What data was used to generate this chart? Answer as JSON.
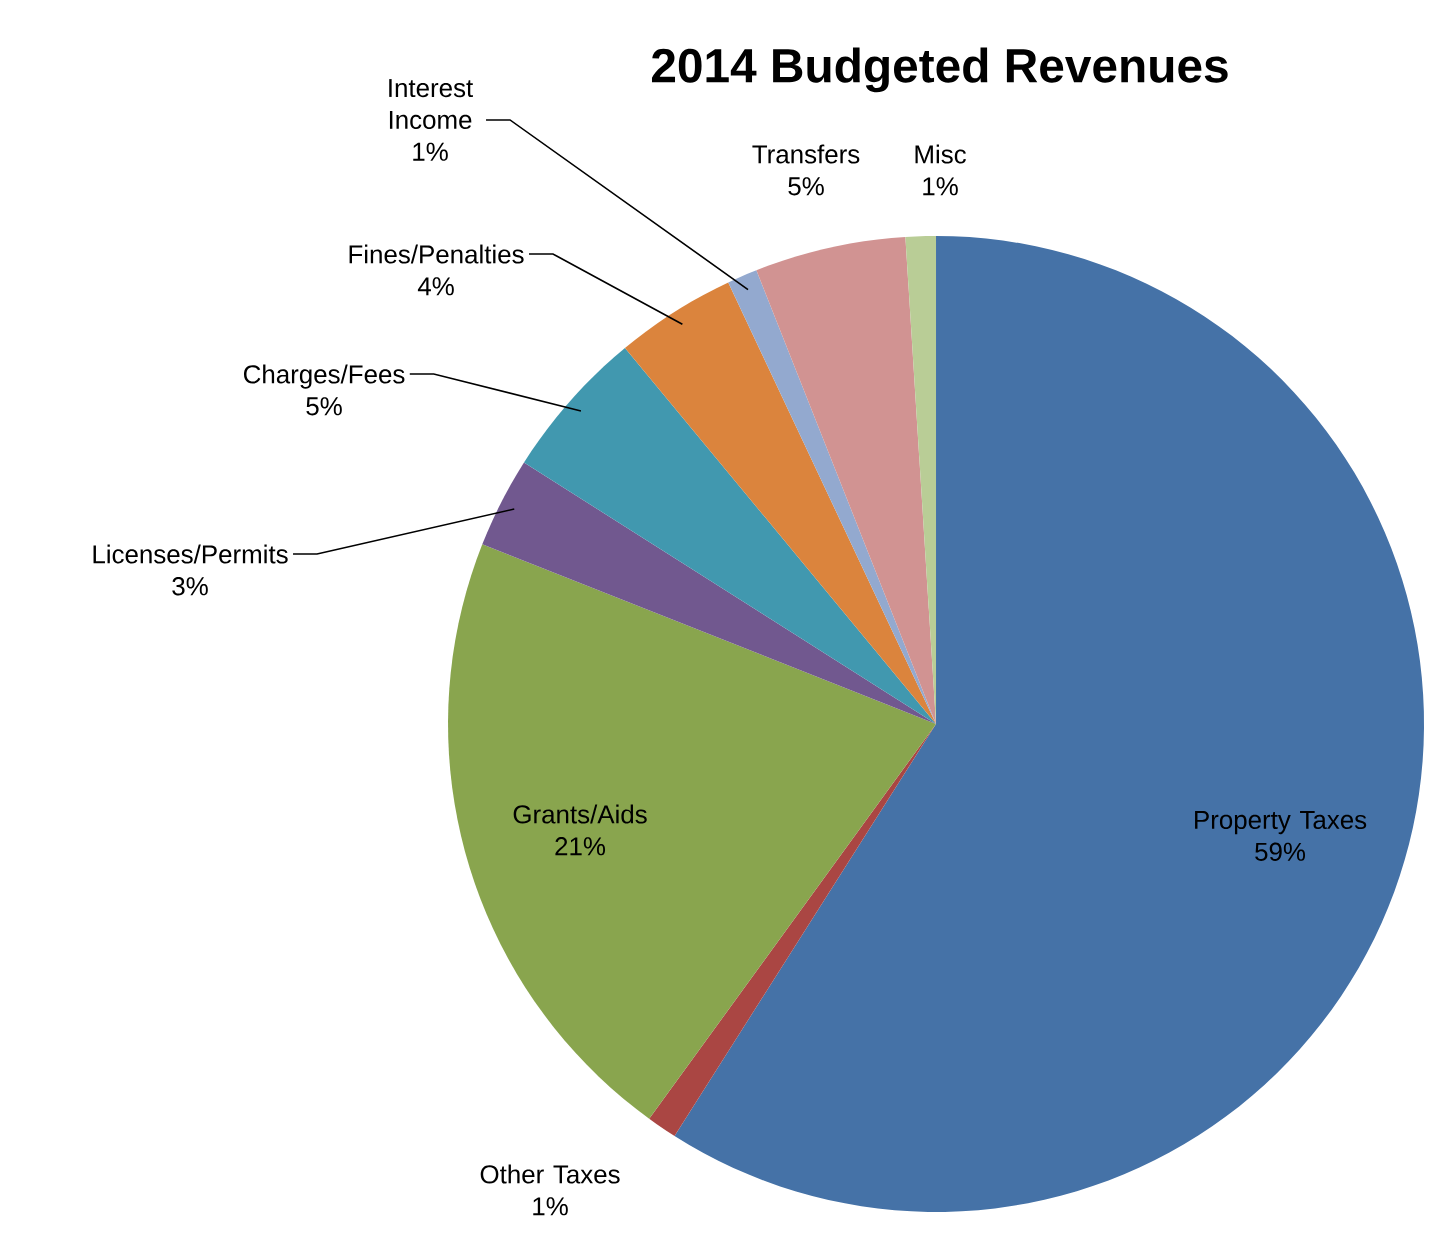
{
  "chart_data": {
    "type": "pie",
    "title": "2014 Budgeted Revenues",
    "categories": [
      "Property Taxes",
      "Other Taxes",
      "Grants/Aids",
      "Licenses/Permits",
      "Charges/Fees",
      "Fines/Penalties",
      "Interest Income",
      "Transfers",
      "Misc"
    ],
    "values": [
      59,
      1,
      21,
      3,
      5,
      4,
      1,
      5,
      1
    ],
    "value_labels": [
      "59%",
      "1%",
      "21%",
      "3%",
      "5%",
      "4%",
      "1%",
      "5%",
      "1%"
    ],
    "colors": [
      "#4572a7",
      "#aa4643",
      "#89a54e",
      "#71588f",
      "#4198af",
      "#db843d",
      "#93a9cf",
      "#d19392",
      "#b9cd96"
    ]
  }
}
